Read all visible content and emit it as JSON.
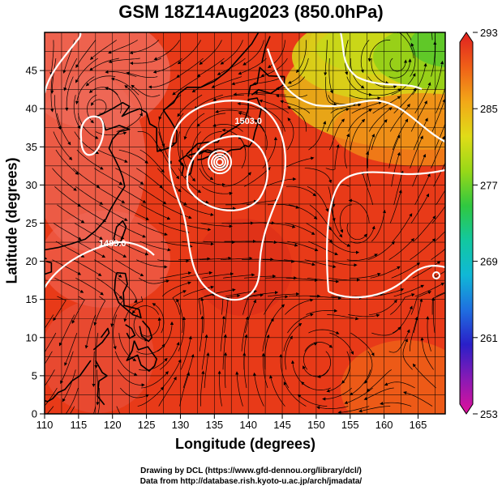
{
  "title": "GSM 18Z14Aug2023 (850.0hPa)",
  "chart_data": {
    "type": "map",
    "title": "GSM 18Z14Aug2023 (850.0hPa)",
    "xlabel": "Longitude (degrees)",
    "ylabel": "Latitude  (degrees)",
    "xlim": [
      110,
      169
    ],
    "ylim": [
      0,
      50
    ],
    "x_ticks": [
      "110",
      "115",
      "120",
      "125",
      "130",
      "135",
      "140",
      "145",
      "150",
      "155",
      "160",
      "165"
    ],
    "y_ticks": [
      "0",
      "5",
      "10",
      "15",
      "20",
      "25",
      "30",
      "35",
      "40",
      "45"
    ],
    "colorbar": {
      "ticks": [
        "293",
        "285",
        "277",
        "269",
        "261",
        "253"
      ],
      "range": [
        253,
        293
      ],
      "colors": [
        "#e0109a",
        "#8a1ab5",
        "#2a1fc8",
        "#1f6fe0",
        "#10b8d6",
        "#12c8a0",
        "#30c840",
        "#98d818",
        "#e0dc18",
        "#f2a818",
        "#f06018",
        "#e02020"
      ]
    },
    "contour_labels": [
      {
        "text": "1503.0",
        "lon": 140,
        "lat": 38
      },
      {
        "text": "1489.0",
        "lon": 120,
        "lat": 22
      }
    ],
    "typhoon_center": {
      "lon": 135.8,
      "lat": 33.0
    }
  },
  "credits": {
    "line1": "Drawing by DCL (https://www.gfd-dennou.org/library/dcl/)",
    "line2": "Data from http://database.rish.kyoto-u.ac.jp/arch/jmadata/"
  }
}
